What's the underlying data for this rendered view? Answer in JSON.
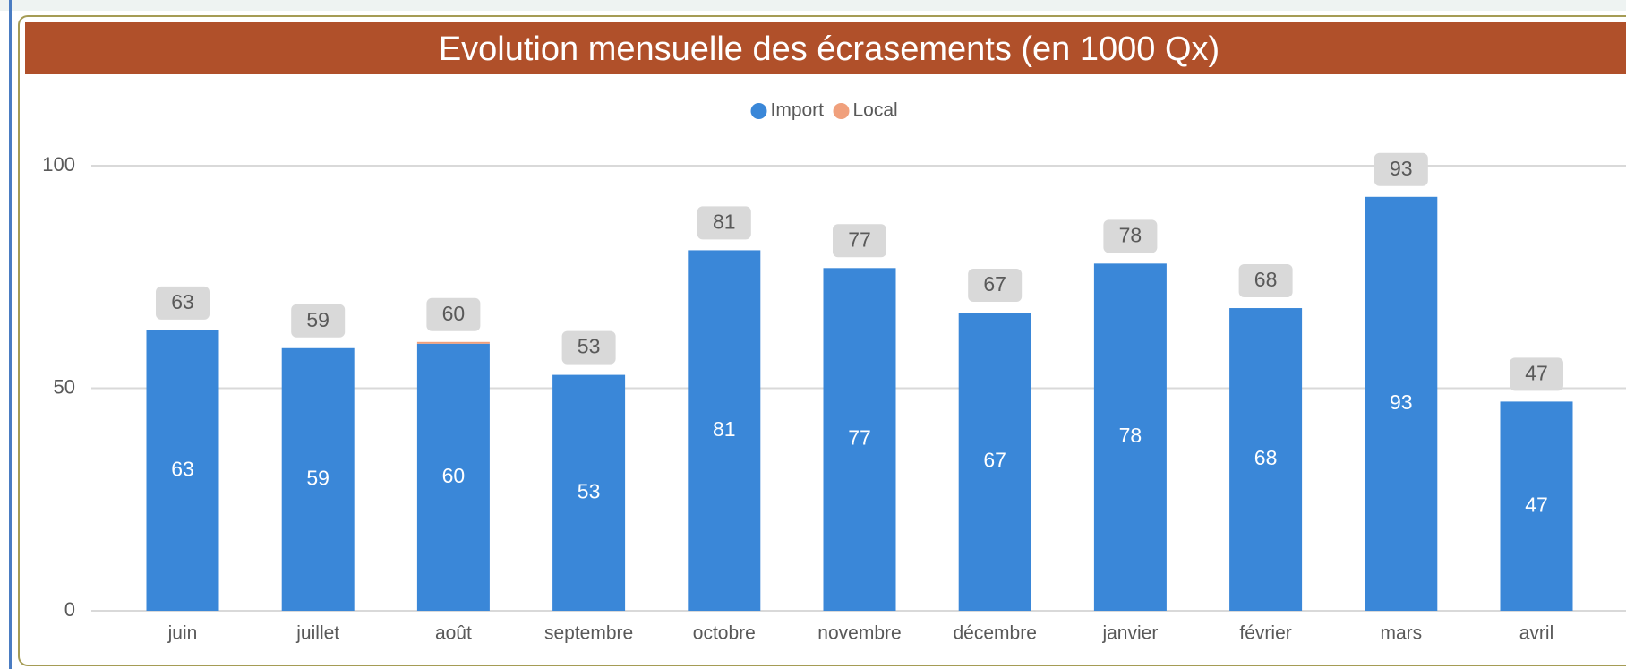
{
  "chart_data": {
    "type": "stacked_bar",
    "title": "Evolution mensuelle des écrasements (en 1000 Qx)",
    "categories": [
      "juin",
      "juillet",
      "août",
      "septembre",
      "octobre",
      "novembre",
      "décembre",
      "janvier",
      "février",
      "mars",
      "avril"
    ],
    "series": [
      {
        "name": "Import",
        "color": "#3a87d8",
        "values": [
          63,
          59,
          60,
          53,
          81,
          77,
          67,
          78,
          68,
          93,
          47
        ]
      },
      {
        "name": "Local",
        "color": "#f0a07c",
        "values": [
          0,
          0,
          0.4,
          0,
          0,
          0,
          0,
          0,
          0,
          0,
          0
        ]
      }
    ],
    "total_labels": [
      "63",
      "59",
      "60",
      "53",
      "81",
      "77",
      "67",
      "78",
      "68",
      "93",
      "47"
    ],
    "ylim": [
      0,
      100
    ],
    "yticks": [
      0,
      50,
      100
    ],
    "grid": true,
    "legend": "top"
  }
}
